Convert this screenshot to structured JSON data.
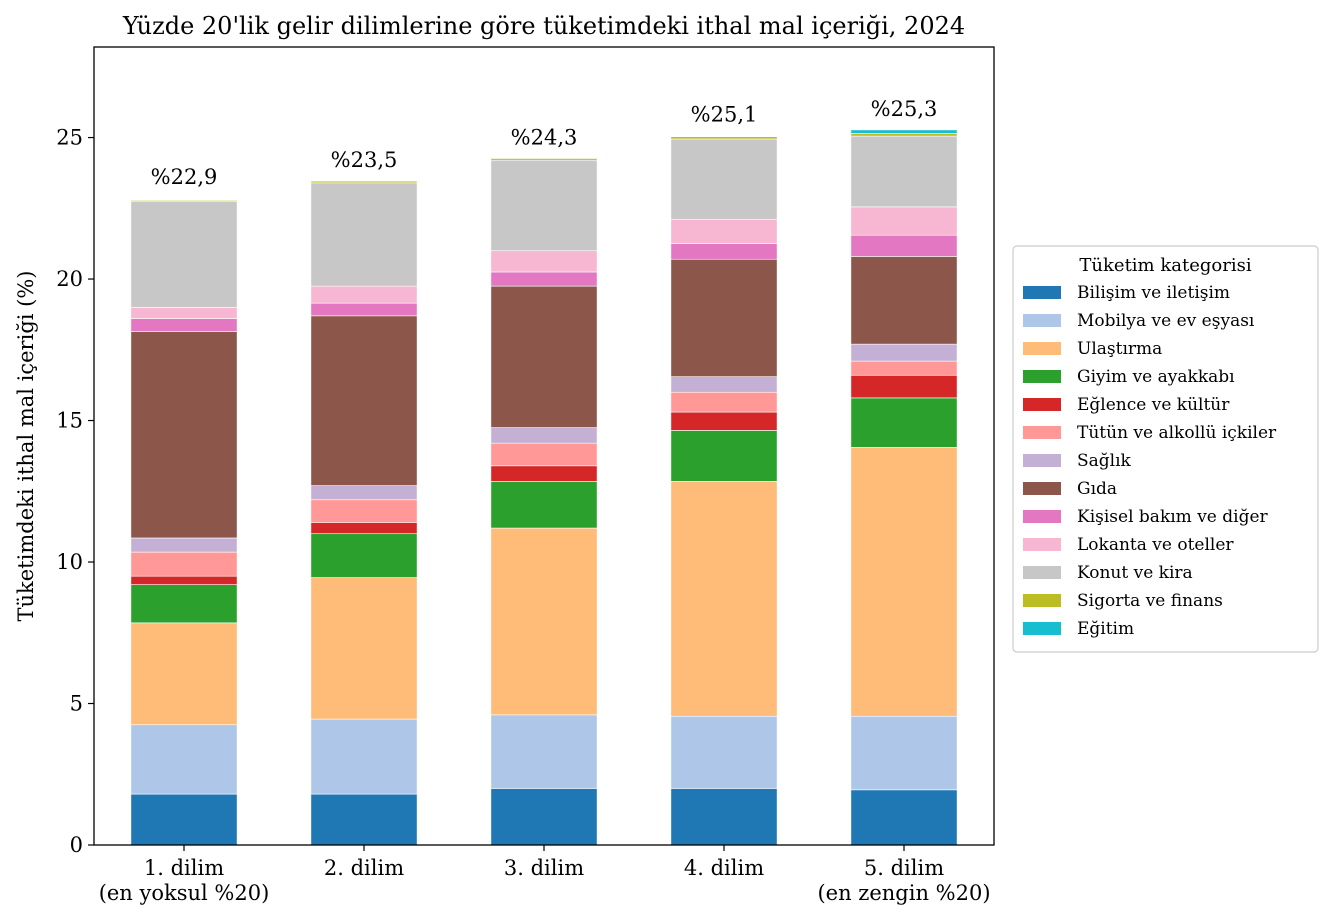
{
  "chart_data": {
    "type": "bar",
    "stacked": true,
    "title": "Yüzde 20'lik gelir dilimlerine göre tüketimdeki ithal mal içeriği, 2024",
    "xlabel": "",
    "ylabel": "Tüketimdeki ithal mal içeriği (%)",
    "ylim": [
      0,
      28.2
    ],
    "yticks": [
      0,
      5,
      10,
      15,
      20,
      25
    ],
    "grid": false,
    "legend_position": "right",
    "legend_title": "Tüketim kategorisi",
    "categories": [
      [
        "1. dilim",
        "(en yoksul %20)"
      ],
      [
        "2. dilim"
      ],
      [
        "3. dilim"
      ],
      [
        "4. dilim"
      ],
      [
        "5. dilim",
        "(en zengin %20)"
      ]
    ],
    "totals": [
      22.9,
      23.5,
      24.3,
      25.1,
      25.3
    ],
    "total_labels": [
      "%22,9",
      "%23,5",
      "%24,3",
      "%25,1",
      "%25,3"
    ],
    "series": [
      {
        "name": "Bilişim ve iletişim",
        "color": "#1f77b4",
        "values": [
          1.8,
          1.8,
          2.0,
          2.0,
          1.95
        ]
      },
      {
        "name": "Mobilya ve ev eşyası",
        "color": "#aec7e8",
        "values": [
          2.45,
          2.65,
          2.6,
          2.55,
          2.6
        ]
      },
      {
        "name": "Ulaştırma",
        "color": "#ffbb78",
        "values": [
          3.6,
          5.0,
          6.6,
          8.3,
          9.5
        ]
      },
      {
        "name": "Giyim ve ayakkabı",
        "color": "#2ca02c",
        "values": [
          1.35,
          1.55,
          1.65,
          1.8,
          1.75
        ]
      },
      {
        "name": "Eğlence ve kültür",
        "color": "#d62728",
        "values": [
          0.3,
          0.4,
          0.55,
          0.65,
          0.8
        ]
      },
      {
        "name": "Tütün ve alkollü içkiler",
        "color": "#ff9896",
        "values": [
          0.85,
          0.8,
          0.8,
          0.7,
          0.5
        ]
      },
      {
        "name": "Sağlık",
        "color": "#c5b0d5",
        "values": [
          0.5,
          0.5,
          0.55,
          0.55,
          0.6
        ]
      },
      {
        "name": "Gıda",
        "color": "#8c564b",
        "values": [
          7.3,
          6.0,
          5.0,
          4.15,
          3.1
        ]
      },
      {
        "name": "Kişisel bakım ve diğer",
        "color": "#e377c2",
        "values": [
          0.45,
          0.45,
          0.5,
          0.55,
          0.75
        ]
      },
      {
        "name": "Lokanta ve oteller",
        "color": "#f7b6d2",
        "values": [
          0.4,
          0.6,
          0.75,
          0.85,
          1.0
        ]
      },
      {
        "name": "Konut ve kira",
        "color": "#c7c7c7",
        "values": [
          3.75,
          3.65,
          3.2,
          2.85,
          2.5
        ]
      },
      {
        "name": "Sigorta ve finans",
        "color": "#bcbd22",
        "values": [
          0.03,
          0.06,
          0.06,
          0.08,
          0.1
        ]
      },
      {
        "name": "Eğitim",
        "color": "#17becf",
        "values": [
          0.0,
          0.0,
          0.0,
          0.0,
          0.12
        ]
      }
    ]
  }
}
